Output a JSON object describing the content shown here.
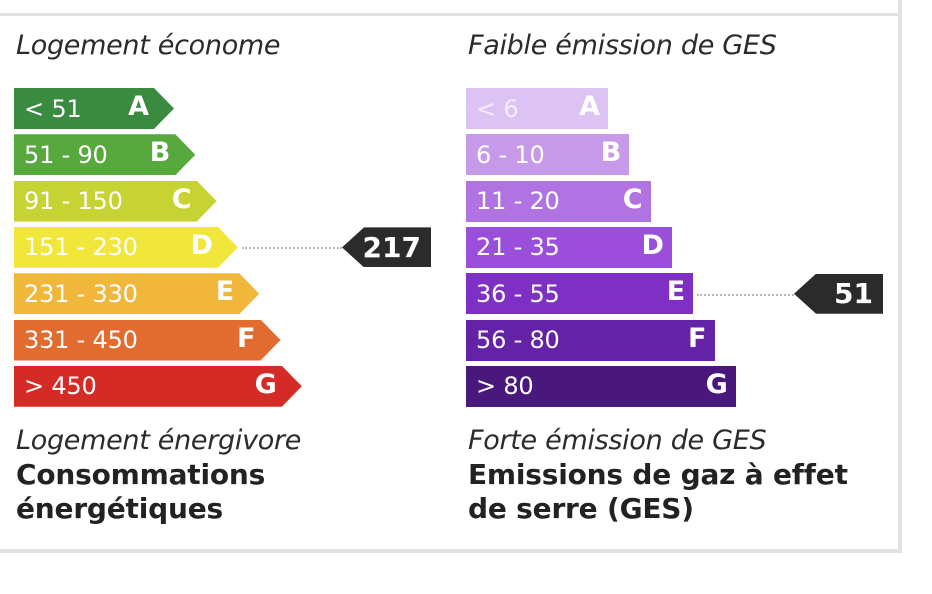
{
  "energy": {
    "header": "Logement économe",
    "footer_italic": "Logement énergivore",
    "footer_bold": "Consommations énergétiques",
    "value": "217",
    "active_class": "D",
    "classes": [
      {
        "range": "< 51",
        "letter": "A",
        "color": "#3a8a3f"
      },
      {
        "range": "51 - 90",
        "letter": "B",
        "color": "#57a83d"
      },
      {
        "range": "91 - 150",
        "letter": "C",
        "color": "#c7d233"
      },
      {
        "range": "151 - 230",
        "letter": "D",
        "color": "#f1e73a"
      },
      {
        "range": "231 - 330",
        "letter": "E",
        "color": "#f0b73b"
      },
      {
        "range": "331 - 450",
        "letter": "F",
        "color": "#e26b2f"
      },
      {
        "range": "> 450",
        "letter": "G",
        "color": "#d42b27"
      }
    ]
  },
  "ges": {
    "header": "Faible émission de GES",
    "footer_italic": "Forte émission de GES",
    "footer_bold": "Emissions de gaz à effet de serre (GES)",
    "value": "51",
    "active_class": "E",
    "classes": [
      {
        "range": "< 6",
        "letter": "A",
        "color": "#dcc3f3"
      },
      {
        "range": "6 - 10",
        "letter": "B",
        "color": "#c79ae9"
      },
      {
        "range": "11 - 20",
        "letter": "C",
        "color": "#b173e2"
      },
      {
        "range": "21 - 35",
        "letter": "D",
        "color": "#9a4ed9"
      },
      {
        "range": "36 - 55",
        "letter": "E",
        "color": "#7f30c4"
      },
      {
        "range": "56 - 80",
        "letter": "F",
        "color": "#6422a6"
      },
      {
        "range": "> 80",
        "letter": "G",
        "color": "#4a187c"
      }
    ]
  }
}
